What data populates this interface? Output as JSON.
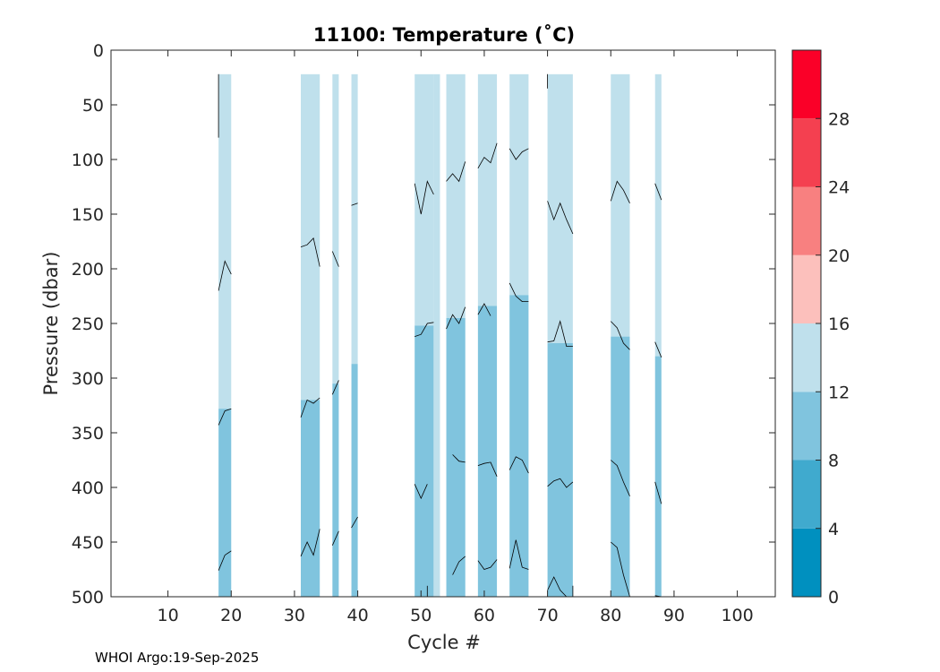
{
  "chart_data": {
    "type": "heatmap",
    "title": "11100:  Temperature (˚C)",
    "xlabel": "Cycle #",
    "ylabel": "Pressure (dbar)",
    "xlim": [
      1,
      106
    ],
    "ylim": [
      0,
      500
    ],
    "y_reversed": true,
    "xticks": [
      10,
      20,
      30,
      40,
      50,
      60,
      70,
      80,
      90,
      100
    ],
    "yticks": [
      0,
      50,
      100,
      150,
      200,
      250,
      300,
      350,
      400,
      450,
      500
    ],
    "colorbar": {
      "levels": [
        0,
        4,
        8,
        12,
        16,
        20,
        24,
        28,
        32
      ],
      "tick_labels": [
        0,
        4,
        8,
        12,
        16,
        20,
        24,
        28
      ],
      "colors": [
        "#0090bf",
        "#40aace",
        "#80c4de",
        "#bfe0ec",
        "#fcc0bc",
        "#f88080",
        "#f44050",
        "#fa0028"
      ]
    },
    "profiles": [
      {
        "x0": 18,
        "x1": 20,
        "top": 22,
        "c12": 328,
        "c8": 500
      },
      {
        "x0": 31,
        "x1": 34,
        "top": 22,
        "c12": 320,
        "c8": 500
      },
      {
        "x0": 36,
        "x1": 37,
        "top": 22,
        "c12": 305,
        "c8": 500
      },
      {
        "x0": 39,
        "x1": 40,
        "top": 22,
        "c12": 287,
        "c8": 500
      },
      {
        "x0": 49,
        "x1": 52,
        "top": 22,
        "c12": 252,
        "c8": 500
      },
      {
        "x0": 52,
        "x1": 53,
        "top": 22,
        "c12": 500,
        "c8": 500
      },
      {
        "x0": 54,
        "x1": 57,
        "top": 22,
        "c12": 245,
        "c8": 500
      },
      {
        "x0": 59,
        "x1": 62,
        "top": 22,
        "c12": 234,
        "c8": 500
      },
      {
        "x0": 64,
        "x1": 67,
        "top": 22,
        "c12": 224,
        "c8": 500
      },
      {
        "x0": 70,
        "x1": 74,
        "top": 22,
        "c12": 268,
        "c8": 500
      },
      {
        "x0": 80,
        "x1": 83,
        "top": 22,
        "c12": 262,
        "c8": 500
      },
      {
        "x0": 87,
        "x1": 88,
        "top": 22,
        "c12": 280,
        "c8": 500
      }
    ],
    "contour_lines": [
      [
        [
          18,
          80
        ],
        [
          18,
          22
        ]
      ],
      [
        [
          18,
          220
        ],
        [
          19,
          193
        ],
        [
          20,
          205
        ]
      ],
      [
        [
          18,
          343
        ],
        [
          19,
          330
        ],
        [
          20,
          328
        ]
      ],
      [
        [
          18,
          476
        ],
        [
          19,
          462
        ],
        [
          20,
          458
        ]
      ],
      [
        [
          31,
          180
        ],
        [
          32,
          178
        ],
        [
          33,
          172
        ],
        [
          34,
          198
        ]
      ],
      [
        [
          31,
          336
        ],
        [
          32,
          320
        ],
        [
          33,
          323
        ],
        [
          34,
          318
        ]
      ],
      [
        [
          31,
          463
        ],
        [
          32,
          450
        ],
        [
          33,
          462
        ],
        [
          34,
          438
        ]
      ],
      [
        [
          36,
          184
        ],
        [
          37,
          198
        ]
      ],
      [
        [
          36,
          315
        ],
        [
          37,
          302
        ]
      ],
      [
        [
          36,
          453
        ],
        [
          37,
          440
        ]
      ],
      [
        [
          39,
          142
        ],
        [
          40,
          140
        ]
      ],
      [
        [
          39,
          437
        ],
        [
          40,
          427
        ]
      ],
      [
        [
          49,
          122
        ],
        [
          50,
          150
        ],
        [
          51,
          120
        ],
        [
          52,
          132
        ]
      ],
      [
        [
          49,
          262
        ],
        [
          50,
          260
        ],
        [
          51,
          250
        ],
        [
          52,
          249
        ]
      ],
      [
        [
          49,
          397
        ],
        [
          50,
          410
        ],
        [
          51,
          397
        ]
      ],
      [
        [
          51,
          500
        ],
        [
          51,
          490
        ]
      ],
      [
        [
          54,
          120
        ],
        [
          55,
          113
        ],
        [
          56,
          120
        ],
        [
          57,
          102
        ]
      ],
      [
        [
          54,
          255
        ],
        [
          55,
          242
        ],
        [
          56,
          250
        ],
        [
          57,
          235
        ]
      ],
      [
        [
          55,
          370
        ],
        [
          56,
          376
        ],
        [
          57,
          377
        ]
      ],
      [
        [
          55,
          480
        ],
        [
          56,
          468
        ],
        [
          57,
          463
        ]
      ],
      [
        [
          59,
          108
        ],
        [
          60,
          98
        ],
        [
          61,
          103
        ],
        [
          62,
          85
        ]
      ],
      [
        [
          59,
          242
        ],
        [
          60,
          232
        ],
        [
          61,
          243
        ]
      ],
      [
        [
          59,
          380
        ],
        [
          60,
          378
        ],
        [
          61,
          377
        ],
        [
          62,
          390
        ]
      ],
      [
        [
          59,
          467
        ],
        [
          60,
          475
        ],
        [
          61,
          473
        ],
        [
          62,
          466
        ]
      ],
      [
        [
          64,
          90
        ],
        [
          65,
          100
        ],
        [
          66,
          93
        ],
        [
          67,
          90
        ]
      ],
      [
        [
          64,
          213
        ],
        [
          65,
          225
        ],
        [
          66,
          230
        ],
        [
          67,
          230
        ]
      ],
      [
        [
          64,
          384
        ],
        [
          65,
          372
        ],
        [
          66,
          375
        ],
        [
          67,
          387
        ]
      ],
      [
        [
          64,
          474
        ],
        [
          65,
          448
        ],
        [
          66,
          473
        ],
        [
          67,
          475
        ]
      ],
      [
        [
          70,
          35
        ],
        [
          70,
          22
        ]
      ],
      [
        [
          70,
          138
        ],
        [
          71,
          155
        ],
        [
          72,
          140
        ],
        [
          73,
          155
        ],
        [
          74,
          168
        ]
      ],
      [
        [
          70,
          267
        ],
        [
          71,
          266
        ],
        [
          72,
          248
        ],
        [
          73,
          271
        ],
        [
          74,
          271
        ]
      ],
      [
        [
          70,
          399
        ],
        [
          71,
          394
        ],
        [
          72,
          392
        ],
        [
          73,
          400
        ],
        [
          74,
          395
        ]
      ],
      [
        [
          70,
          494
        ],
        [
          71,
          482
        ],
        [
          72,
          494
        ],
        [
          73,
          500
        ]
      ],
      [
        [
          74,
          500
        ],
        [
          74,
          490
        ]
      ],
      [
        [
          80,
          138
        ],
        [
          81,
          120
        ],
        [
          82,
          128
        ],
        [
          83,
          140
        ]
      ],
      [
        [
          80,
          248
        ],
        [
          81,
          254
        ],
        [
          82,
          268
        ],
        [
          83,
          274
        ]
      ],
      [
        [
          80,
          375
        ],
        [
          81,
          380
        ],
        [
          82,
          395
        ],
        [
          83,
          408
        ]
      ],
      [
        [
          80,
          450
        ],
        [
          81,
          455
        ],
        [
          82,
          480
        ],
        [
          83,
          500
        ]
      ],
      [
        [
          87,
          122
        ],
        [
          88,
          137
        ]
      ],
      [
        [
          87,
          267
        ],
        [
          88,
          281
        ]
      ],
      [
        [
          87,
          395
        ],
        [
          88,
          415
        ]
      ],
      [
        [
          87,
          499
        ],
        [
          88,
          500
        ]
      ]
    ]
  },
  "footer": {
    "text": "WHOI Argo:19-Sep-2025"
  }
}
